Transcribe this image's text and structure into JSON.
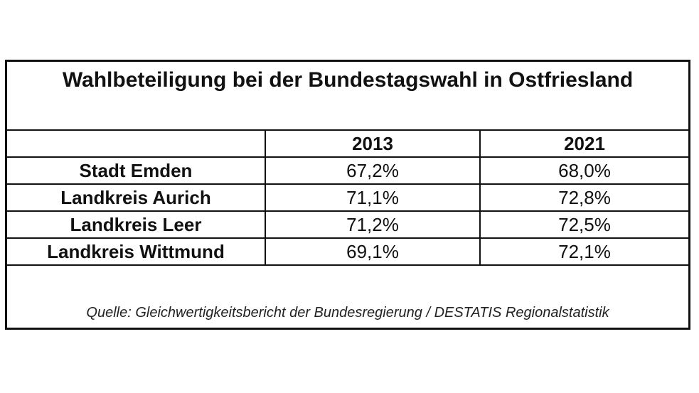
{
  "table": {
    "title": "Wahlbeteiligung bei der Bundestagswahl in Ostfriesland",
    "headers": [
      "",
      "2013",
      "2021"
    ],
    "rows": [
      {
        "region": "Stadt Emden",
        "v2013": "67,2%",
        "v2021": "68,0%"
      },
      {
        "region": "Landkreis Aurich",
        "v2013": "71,1%",
        "v2021": "72,8%"
      },
      {
        "region": "Landkreis Leer",
        "v2013": "71,2%",
        "v2021": "72,5%"
      },
      {
        "region": "Landkreis Wittmund",
        "v2013": "69,1%",
        "v2021": "72,1%"
      }
    ],
    "source": "Quelle: Gleichwertigkeitsbericht der Bundesregierung / DESTATIS Regionalstatistik"
  }
}
